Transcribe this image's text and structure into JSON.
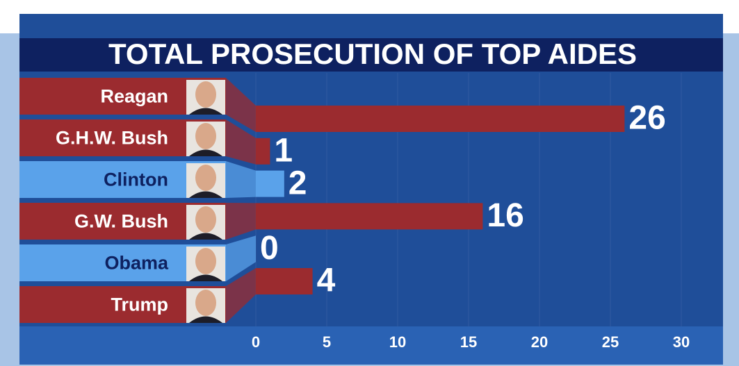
{
  "chart_data": {
    "type": "bar",
    "orientation": "horizontal",
    "title": "TOTAL PROSECUTION OF TOP AIDES",
    "categories": [
      "Reagan",
      "G.H.W. Bush",
      "Clinton",
      "G.W. Bush",
      "Obama",
      "Trump"
    ],
    "values": [
      26,
      1,
      2,
      16,
      0,
      4
    ],
    "colors": [
      "#9b2b2f",
      "#9b2b2f",
      "#5aa2ea",
      "#9b2b2f",
      "#5aa2ea",
      "#9b2b2f"
    ],
    "xlim": [
      0,
      30
    ],
    "xticks": [
      0,
      5,
      10,
      15,
      20,
      25,
      30
    ]
  }
}
